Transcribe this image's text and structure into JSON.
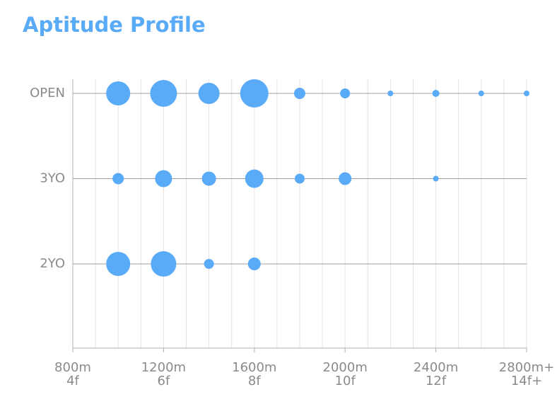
{
  "chart_data": {
    "type": "bubble",
    "title": "Aptitude Profile",
    "color": "#5aabf7",
    "xlim": [
      800,
      2800
    ],
    "xticks": [
      {
        "value": 800,
        "label": "800m"
      },
      {
        "value": 1200,
        "label": "1200m"
      },
      {
        "value": 1600,
        "label": "1600m"
      },
      {
        "value": 2000,
        "label": "2000m"
      },
      {
        "value": 2400,
        "label": "2400m"
      },
      {
        "value": 2800,
        "label": "2800m+"
      }
    ],
    "xtick_sublabels": [
      "4f",
      "6f",
      "8f",
      "10f",
      "12f",
      "14f+"
    ],
    "minor_grid_step": 100,
    "series": [
      {
        "name": "OPEN",
        "x": [
          1000,
          1200,
          1400,
          1600,
          1800,
          2000,
          2200,
          2400,
          2600,
          2800
        ],
        "sizes": [
          17,
          19,
          15,
          20,
          8,
          7,
          4,
          5,
          4,
          4
        ]
      },
      {
        "name": "3YO",
        "x": [
          1000,
          1200,
          1400,
          1600,
          1800,
          2000,
          2400
        ],
        "sizes": [
          8,
          12,
          10,
          13,
          7,
          9,
          4
        ]
      },
      {
        "name": "2YO",
        "x": [
          1000,
          1200,
          1400,
          1600
        ],
        "sizes": [
          17,
          18,
          7,
          9
        ]
      }
    ]
  }
}
